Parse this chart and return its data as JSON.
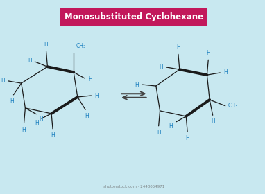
{
  "title": "Monosubstituted Cyclohexane",
  "title_bg": "#C2185B",
  "title_fg": "#FFFFFF",
  "bg_color": "#C8E8F0",
  "bond_color": "#1a1a1a",
  "label_color": "#1B7FBF",
  "h_label": "H",
  "ch3_label": "CH₃",
  "arrow_color": "#444444",
  "watermark": "shutterstock.com · 2448054971",
  "lfs": 5.5,
  "bold_lw": 2.8,
  "thin_lw": 0.9
}
